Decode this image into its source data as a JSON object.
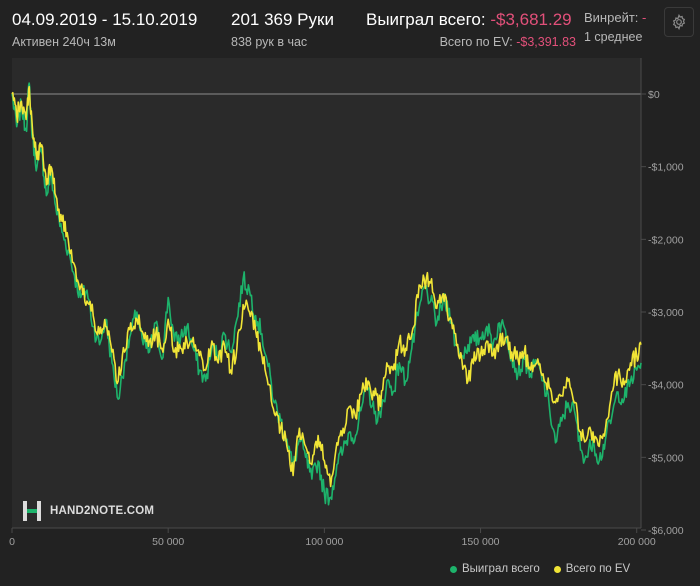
{
  "header": {
    "date_range": "04.09.2019 - 15.10.2019",
    "active_time": "Активен 240ч 13м",
    "hands": "201 369 Руки",
    "hands_per_hour": "838 рук в час",
    "won_total_label": "Выиграл всего:",
    "won_total_value": "-$3,681.29",
    "ev_total_label": "Всего по EV:",
    "ev_total_value": "-$3,391.83",
    "winrate_label": "Винрейт:",
    "winrate_value": "-",
    "winrate_note": "1 среднее"
  },
  "settings_icon": "gear-icon",
  "logo": {
    "text": "HAND2NOTE.COM",
    "icon": "h2n-logo-icon"
  },
  "legend": {
    "won": "Выиграл всего",
    "ev": "Всего по EV"
  },
  "colors": {
    "won": "#1db36b",
    "ev": "#f1e536",
    "negative": "#e2507a",
    "background": "#222222"
  },
  "chart_data": {
    "type": "line",
    "xlim": [
      0,
      201369
    ],
    "ylim": [
      -6000,
      0
    ],
    "x_ticks": [
      0,
      50000,
      100000,
      150000,
      200000
    ],
    "x_tick_labels": [
      "0",
      "50 000",
      "100 000",
      "150 000",
      "200 000"
    ],
    "y_ticks": [
      0,
      -1000,
      -2000,
      -3000,
      -4000,
      -5000,
      -6000
    ],
    "y_tick_labels": [
      "$0",
      "-$1,000",
      "-$2,000",
      "-$3,000",
      "-$4,000",
      "-$5,000",
      "-$6,000"
    ],
    "grid": false,
    "legend_position": "bottom-right",
    "series": [
      {
        "name": "Выиграл всего",
        "color": "#1db36b",
        "x": [
          0,
          1500,
          3000,
          4500,
          5500,
          6500,
          8000,
          9500,
          11000,
          12500,
          14000,
          16000,
          18000,
          20000,
          22000,
          24000,
          26000,
          28000,
          30000,
          32000,
          34000,
          36000,
          38000,
          40000,
          42000,
          44000,
          46000,
          48000,
          50000,
          52000,
          54000,
          56000,
          58000,
          60000,
          62000,
          64000,
          66000,
          68000,
          70000,
          72000,
          74000,
          76000,
          78000,
          80000,
          82000,
          84000,
          86000,
          88000,
          90000,
          92000,
          94000,
          96000,
          98000,
          100000,
          102000,
          104000,
          106000,
          108000,
          110000,
          112000,
          114000,
          116000,
          118000,
          120000,
          122000,
          124000,
          126000,
          128000,
          130000,
          132000,
          134000,
          136000,
          138000,
          140000,
          142000,
          144000,
          146000,
          148000,
          150000,
          152000,
          154000,
          156000,
          158000,
          160000,
          162000,
          164000,
          166000,
          168000,
          170000,
          172000,
          174000,
          176000,
          178000,
          180000,
          182000,
          184000,
          186000,
          188000,
          190000,
          192000,
          194000,
          196000,
          198000,
          200000,
          201369
        ],
        "y": [
          0,
          -450,
          -150,
          -500,
          150,
          -600,
          -1000,
          -800,
          -1400,
          -1100,
          -1550,
          -1900,
          -2150,
          -2500,
          -2800,
          -2700,
          -3200,
          -3450,
          -3100,
          -3700,
          -4200,
          -3700,
          -3300,
          -3000,
          -3450,
          -3550,
          -3150,
          -3650,
          -2800,
          -3400,
          -3350,
          -3200,
          -3500,
          -3800,
          -3950,
          -3500,
          -3600,
          -3300,
          -3550,
          -3100,
          -2550,
          -2700,
          -3050,
          -3300,
          -3750,
          -4250,
          -4500,
          -4750,
          -5150,
          -4750,
          -5000,
          -5300,
          -5050,
          -5500,
          -5550,
          -5100,
          -4900,
          -4650,
          -4700,
          -4300,
          -4050,
          -4400,
          -4450,
          -3950,
          -4100,
          -3700,
          -3950,
          -3500,
          -3050,
          -2650,
          -2850,
          -3150,
          -2850,
          -2950,
          -3450,
          -3600,
          -3450,
          -3400,
          -3350,
          -3200,
          -3450,
          -3150,
          -3250,
          -3600,
          -3850,
          -3650,
          -3850,
          -3700,
          -3950,
          -4300,
          -4800,
          -4500,
          -4250,
          -4350,
          -4900,
          -5000,
          -4750,
          -5050,
          -4750,
          -4450,
          -4100,
          -4200,
          -3950,
          -3800,
          -3700
        ]
      },
      {
        "name": "Всего по EV",
        "color": "#f1e536",
        "x": [
          0,
          1500,
          3000,
          4500,
          5500,
          6500,
          8000,
          9500,
          11000,
          12500,
          14000,
          16000,
          18000,
          20000,
          22000,
          24000,
          26000,
          28000,
          30000,
          32000,
          34000,
          36000,
          38000,
          40000,
          42000,
          44000,
          46000,
          48000,
          50000,
          52000,
          54000,
          56000,
          58000,
          60000,
          62000,
          64000,
          66000,
          68000,
          70000,
          72000,
          74000,
          76000,
          78000,
          80000,
          82000,
          84000,
          86000,
          88000,
          90000,
          92000,
          94000,
          96000,
          98000,
          100000,
          102000,
          104000,
          106000,
          108000,
          110000,
          112000,
          114000,
          116000,
          118000,
          120000,
          122000,
          124000,
          126000,
          128000,
          130000,
          132000,
          134000,
          136000,
          138000,
          140000,
          142000,
          144000,
          146000,
          148000,
          150000,
          152000,
          154000,
          156000,
          158000,
          160000,
          162000,
          164000,
          166000,
          168000,
          170000,
          172000,
          174000,
          176000,
          178000,
          180000,
          182000,
          184000,
          186000,
          188000,
          190000,
          192000,
          194000,
          196000,
          198000,
          200000,
          201369
        ],
        "y": [
          0,
          -300,
          -100,
          -350,
          100,
          -450,
          -900,
          -700,
          -1250,
          -1000,
          -1400,
          -1750,
          -2000,
          -2350,
          -2650,
          -2850,
          -3050,
          -3300,
          -3200,
          -3550,
          -3950,
          -3550,
          -3150,
          -3100,
          -3300,
          -3400,
          -3300,
          -3500,
          -3100,
          -3550,
          -3500,
          -3400,
          -3350,
          -3600,
          -3800,
          -3400,
          -3700,
          -3450,
          -3800,
          -3500,
          -2900,
          -3000,
          -3250,
          -3600,
          -4000,
          -4400,
          -4600,
          -4850,
          -5250,
          -4600,
          -4850,
          -5100,
          -4700,
          -5050,
          -5400,
          -4800,
          -4600,
          -4300,
          -4450,
          -4100,
          -3950,
          -4150,
          -4300,
          -3700,
          -3800,
          -3400,
          -3500,
          -3300,
          -2800,
          -2550,
          -2600,
          -2950,
          -2750,
          -3100,
          -3300,
          -3650,
          -3950,
          -3550,
          -3600,
          -3400,
          -3600,
          -3400,
          -3350,
          -3550,
          -3650,
          -3550,
          -3800,
          -3700,
          -3850,
          -4050,
          -4250,
          -4150,
          -3950,
          -4250,
          -4650,
          -4750,
          -4650,
          -4850,
          -4600,
          -4100,
          -3850,
          -4000,
          -3700,
          -3600,
          -3450
        ]
      }
    ]
  }
}
